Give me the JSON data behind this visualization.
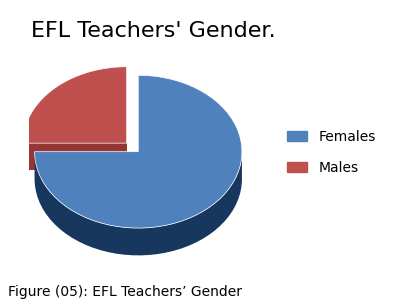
{
  "title": "EFL Teachers' Gender.",
  "caption": "Figure (05): EFL Teachers’ Gender",
  "slices": [
    75,
    25
  ],
  "labels": [
    "Females",
    "Males"
  ],
  "colors_top": [
    "#4F81BD",
    "#C0504D"
  ],
  "colors_side": [
    "#17375E",
    "#943634"
  ],
  "explode": [
    0,
    0.12
  ],
  "startangle": 90,
  "title_fontsize": 16,
  "legend_fontsize": 10,
  "caption_fontsize": 10,
  "background_color": "#ffffff"
}
